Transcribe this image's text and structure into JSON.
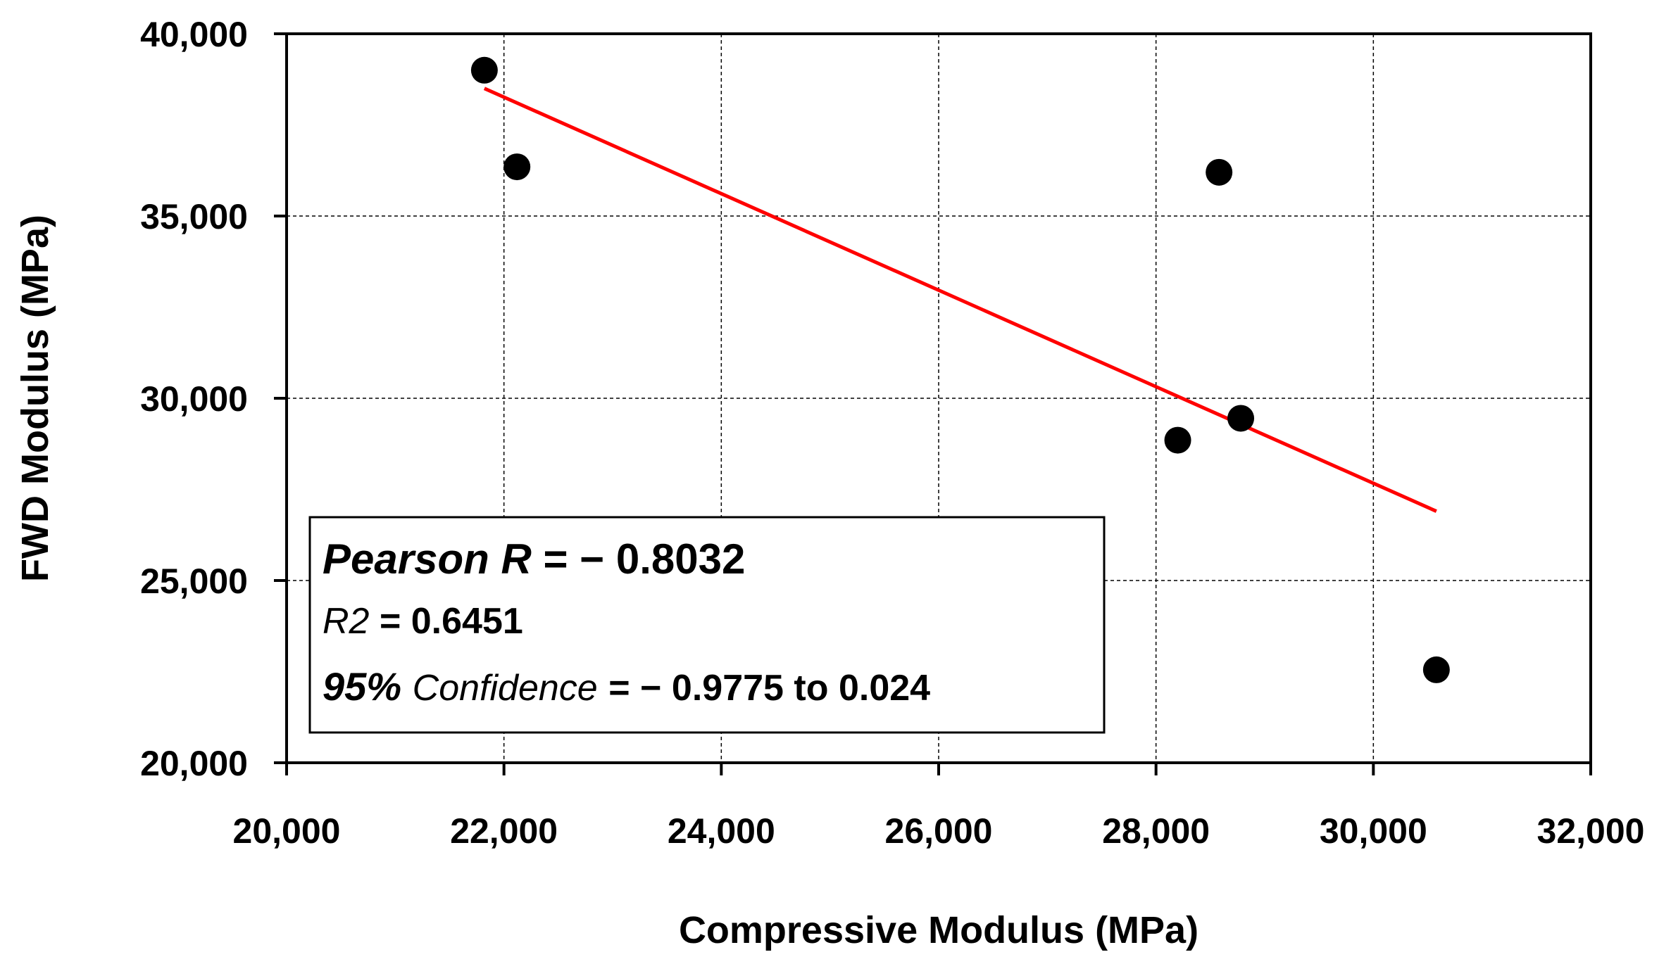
{
  "chart_data": {
    "type": "scatter",
    "xlabel": "Compressive Modulus (MPa)",
    "ylabel": "FWD Modulus (MPa)",
    "xlim": [
      20000,
      32000
    ],
    "ylim": [
      20000,
      40000
    ],
    "xticks": [
      20000,
      22000,
      24000,
      26000,
      28000,
      30000,
      32000
    ],
    "yticks": [
      20000,
      25000,
      30000,
      35000,
      40000
    ],
    "xtick_labels": [
      "20,000",
      "22,000",
      "24,000",
      "26,000",
      "28,000",
      "30,000",
      "32,000"
    ],
    "ytick_labels": [
      "20,000",
      "25,000",
      "30,000",
      "35,000",
      "40,000"
    ],
    "grid": true,
    "points": [
      {
        "x": 21820,
        "y": 39000
      },
      {
        "x": 22120,
        "y": 36350
      },
      {
        "x": 28580,
        "y": 36200
      },
      {
        "x": 28780,
        "y": 29450
      },
      {
        "x": 28200,
        "y": 28850
      },
      {
        "x": 30580,
        "y": 22550
      }
    ],
    "point_color": "#000000",
    "trendline": {
      "color": "#ff0000",
      "x": [
        21820,
        30580
      ],
      "y": [
        38500,
        26900
      ]
    },
    "stats_box": {
      "pearson_label": "Pearson R",
      "pearson_value": "= − 0.8032",
      "r2_label": "R2",
      "r2_value": "=  0.6451",
      "ci_label_pct": "95%",
      "ci_label_word": "Confidence",
      "ci_value": "= − 0.9775 to 0.024"
    }
  }
}
